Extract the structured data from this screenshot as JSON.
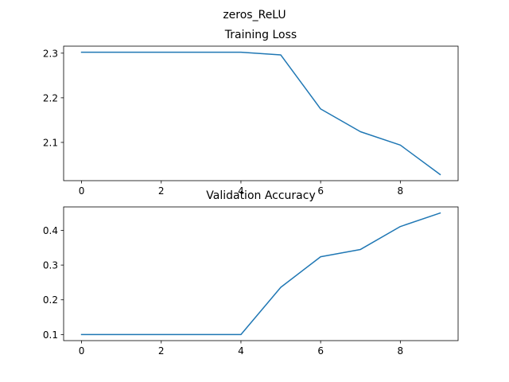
{
  "figure": {
    "suptitle": "zeros_ReLU"
  },
  "chart_data": [
    {
      "type": "line",
      "title": "Training Loss",
      "xlabel": "",
      "ylabel": "",
      "x": [
        0,
        1,
        2,
        3,
        4,
        5,
        6,
        7,
        8,
        9
      ],
      "series": [
        {
          "values": [
            2.302,
            2.302,
            2.302,
            2.302,
            2.302,
            2.296,
            2.175,
            2.124,
            2.094,
            2.028
          ],
          "color": "#1f77b4"
        }
      ],
      "xlim": [
        -0.45,
        9.45
      ],
      "ylim": [
        2.0143,
        2.3157
      ],
      "xticks": [
        0,
        2,
        4,
        6,
        8
      ],
      "xtick_labels": [
        "0",
        "2",
        "4",
        "6",
        "8"
      ],
      "yticks": [
        2.1,
        2.2,
        2.3
      ],
      "ytick_labels": [
        "2.1",
        "2.2",
        "2.3"
      ],
      "grid": false,
      "legend": "none"
    },
    {
      "type": "line",
      "title": "Validation Accuracy",
      "xlabel": "",
      "ylabel": "",
      "x": [
        0,
        1,
        2,
        3,
        4,
        5,
        6,
        7,
        8,
        9
      ],
      "series": [
        {
          "values": [
            0.1,
            0.1,
            0.1,
            0.1,
            0.1,
            0.236,
            0.324,
            0.345,
            0.411,
            0.45
          ],
          "color": "#1f77b4"
        }
      ],
      "xlim": [
        -0.45,
        9.45
      ],
      "ylim": [
        0.0825,
        0.4675
      ],
      "xticks": [
        0,
        2,
        4,
        6,
        8
      ],
      "xtick_labels": [
        "0",
        "2",
        "4",
        "6",
        "8"
      ],
      "yticks": [
        0.1,
        0.2,
        0.3,
        0.4
      ],
      "ytick_labels": [
        "0.1",
        "0.2",
        "0.3",
        "0.4"
      ],
      "grid": false,
      "legend": "none"
    }
  ]
}
